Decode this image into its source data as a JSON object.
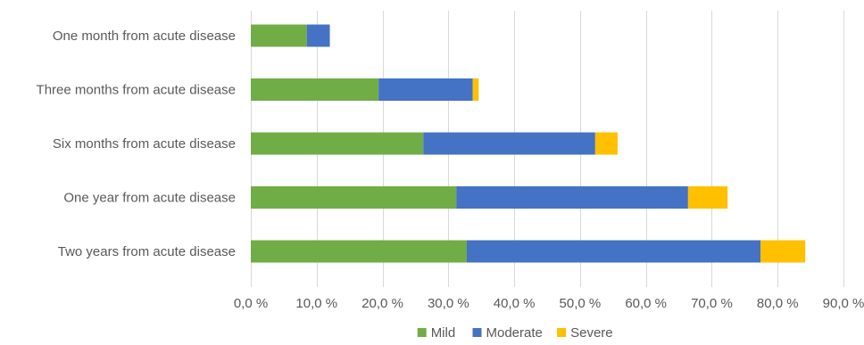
{
  "chart_data": {
    "type": "bar",
    "orientation": "horizontal",
    "stacked": true,
    "title": "",
    "xlabel": "",
    "ylabel": "",
    "categories": [
      "One month from acute disease",
      "Three months from acute disease",
      "Six months from acute disease",
      "One year from acute disease",
      "Two years from acute disease"
    ],
    "series": [
      {
        "name": "Mild",
        "color": "#70ad47",
        "values": [
          8.5,
          19.4,
          26.2,
          31.2,
          32.8
        ]
      },
      {
        "name": "Moderate",
        "color": "#4472c4",
        "values": [
          3.5,
          14.3,
          26.1,
          35.2,
          44.6
        ]
      },
      {
        "name": "Severe",
        "color": "#ffc000",
        "values": [
          0.0,
          0.9,
          3.4,
          6.0,
          6.8
        ]
      }
    ],
    "xlim": [
      0,
      90
    ],
    "xticks": [
      0,
      10,
      20,
      30,
      40,
      50,
      60,
      70,
      80,
      90
    ],
    "xtick_labels": [
      "0,0 %",
      "10,0 %",
      "20,0 %",
      "30,0 %",
      "40,0 %",
      "50,0 %",
      "60,0 %",
      "70,0 %",
      "80,0 %",
      "90,0 %"
    ],
    "grid": "vertical",
    "legend": "bottom-center"
  }
}
